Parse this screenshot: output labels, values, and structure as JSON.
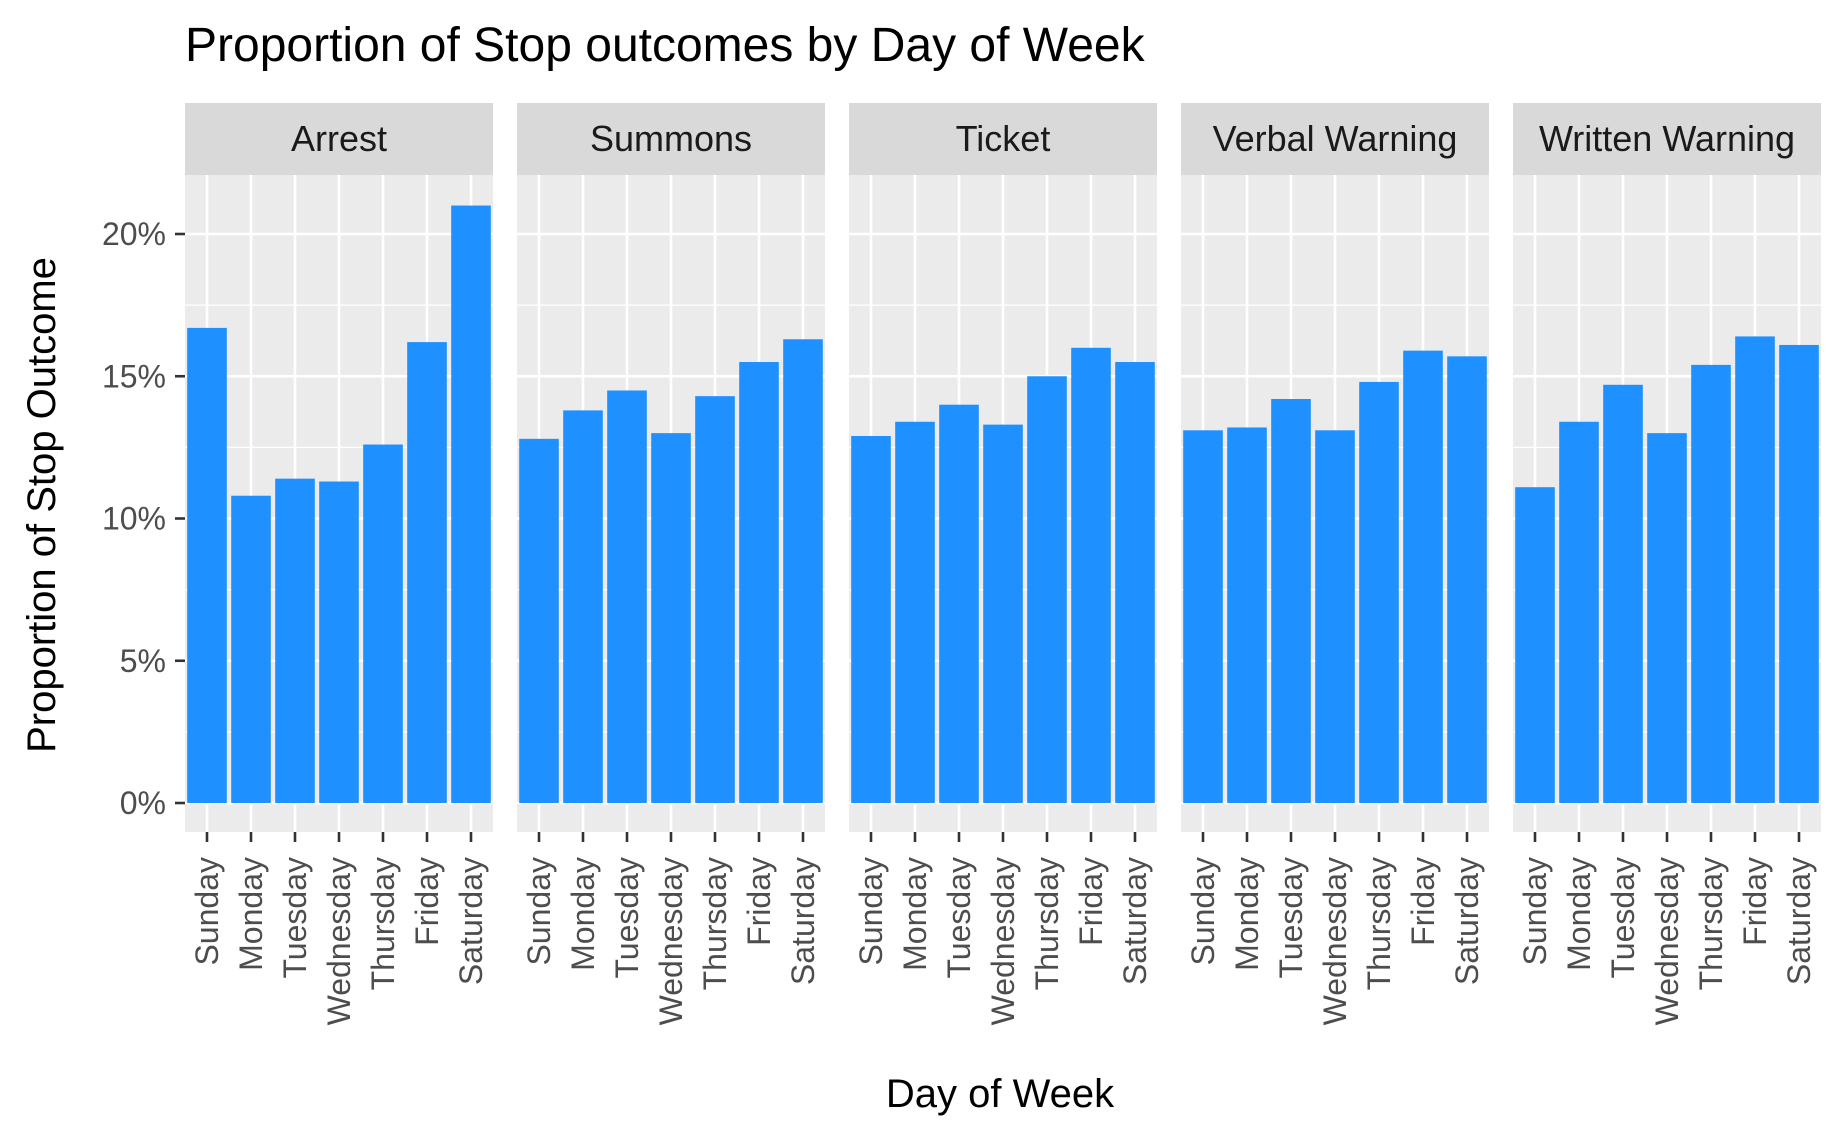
{
  "chart_data": {
    "type": "bar",
    "title": "Proportion of Stop outcomes by Day of Week",
    "xlabel": "Day of Week",
    "ylabel": "Proportion of Stop Outcome",
    "categories": [
      "Sunday",
      "Monday",
      "Tuesday",
      "Wednesday",
      "Thursday",
      "Friday",
      "Saturday"
    ],
    "ylim": [
      0,
      0.225
    ],
    "yticks": [
      0,
      0.05,
      0.1,
      0.15,
      0.2
    ],
    "ytick_labels": [
      "0%",
      "5%",
      "10%",
      "15%",
      "20%"
    ],
    "grid": true,
    "bar_color": "#1E90FF",
    "panel_background": "#EBEBEB",
    "strip_background": "#D9D9D9",
    "facets": [
      {
        "name": "Arrest",
        "values": [
          0.167,
          0.108,
          0.114,
          0.113,
          0.126,
          0.162,
          0.21
        ]
      },
      {
        "name": "Summons",
        "values": [
          0.128,
          0.138,
          0.145,
          0.13,
          0.143,
          0.155,
          0.163
        ]
      },
      {
        "name": "Ticket",
        "values": [
          0.129,
          0.134,
          0.14,
          0.133,
          0.15,
          0.16,
          0.155
        ]
      },
      {
        "name": "Verbal Warning",
        "values": [
          0.131,
          0.132,
          0.142,
          0.131,
          0.148,
          0.159,
          0.157
        ]
      },
      {
        "name": "Written Warning",
        "values": [
          0.111,
          0.134,
          0.147,
          0.13,
          0.154,
          0.164,
          0.161
        ]
      }
    ]
  }
}
